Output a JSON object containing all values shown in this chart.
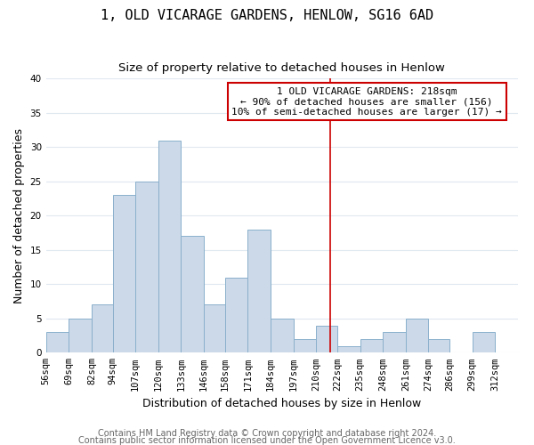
{
  "title": "1, OLD VICARAGE GARDENS, HENLOW, SG16 6AD",
  "subtitle": "Size of property relative to detached houses in Henlow",
  "xlabel": "Distribution of detached houses by size in Henlow",
  "ylabel": "Number of detached properties",
  "bar_left_edges": [
    56,
    69,
    82,
    94,
    107,
    120,
    133,
    146,
    158,
    171,
    184,
    197,
    210,
    222,
    235,
    248,
    261,
    274,
    286,
    299
  ],
  "bar_widths": [
    13,
    13,
    12,
    13,
    13,
    13,
    13,
    12,
    13,
    13,
    13,
    13,
    12,
    13,
    13,
    13,
    13,
    12,
    13,
    13
  ],
  "bar_heights": [
    3,
    5,
    7,
    23,
    25,
    31,
    17,
    7,
    11,
    18,
    5,
    2,
    4,
    1,
    2,
    3,
    5,
    2,
    0,
    3
  ],
  "bar_color": "#ccd9e8",
  "bar_edgecolor": "#8ab0cc",
  "tick_labels": [
    "56sqm",
    "69sqm",
    "82sqm",
    "94sqm",
    "107sqm",
    "120sqm",
    "133sqm",
    "146sqm",
    "158sqm",
    "171sqm",
    "184sqm",
    "197sqm",
    "210sqm",
    "222sqm",
    "235sqm",
    "248sqm",
    "261sqm",
    "274sqm",
    "286sqm",
    "299sqm",
    "312sqm"
  ],
  "ylim": [
    0,
    40
  ],
  "yticks": [
    0,
    5,
    10,
    15,
    20,
    25,
    30,
    35,
    40
  ],
  "xlim_left": 56,
  "xlim_right": 325,
  "vline_x": 218,
  "vline_color": "#cc0000",
  "annotation_line0": "1 OLD VICARAGE GARDENS: 218sqm",
  "annotation_line1": "← 90% of detached houses are smaller (156)",
  "annotation_line2": "10% of semi-detached houses are larger (17) →",
  "footer1": "Contains HM Land Registry data © Crown copyright and database right 2024.",
  "footer2": "Contains public sector information licensed under the Open Government Licence v3.0.",
  "plot_bg_color": "#ffffff",
  "fig_bg_color": "#ffffff",
  "grid_color": "#e0e8f0",
  "title_fontsize": 11,
  "subtitle_fontsize": 9.5,
  "axis_label_fontsize": 9,
  "tick_fontsize": 7.5,
  "annotation_fontsize": 8,
  "footer_fontsize": 7
}
